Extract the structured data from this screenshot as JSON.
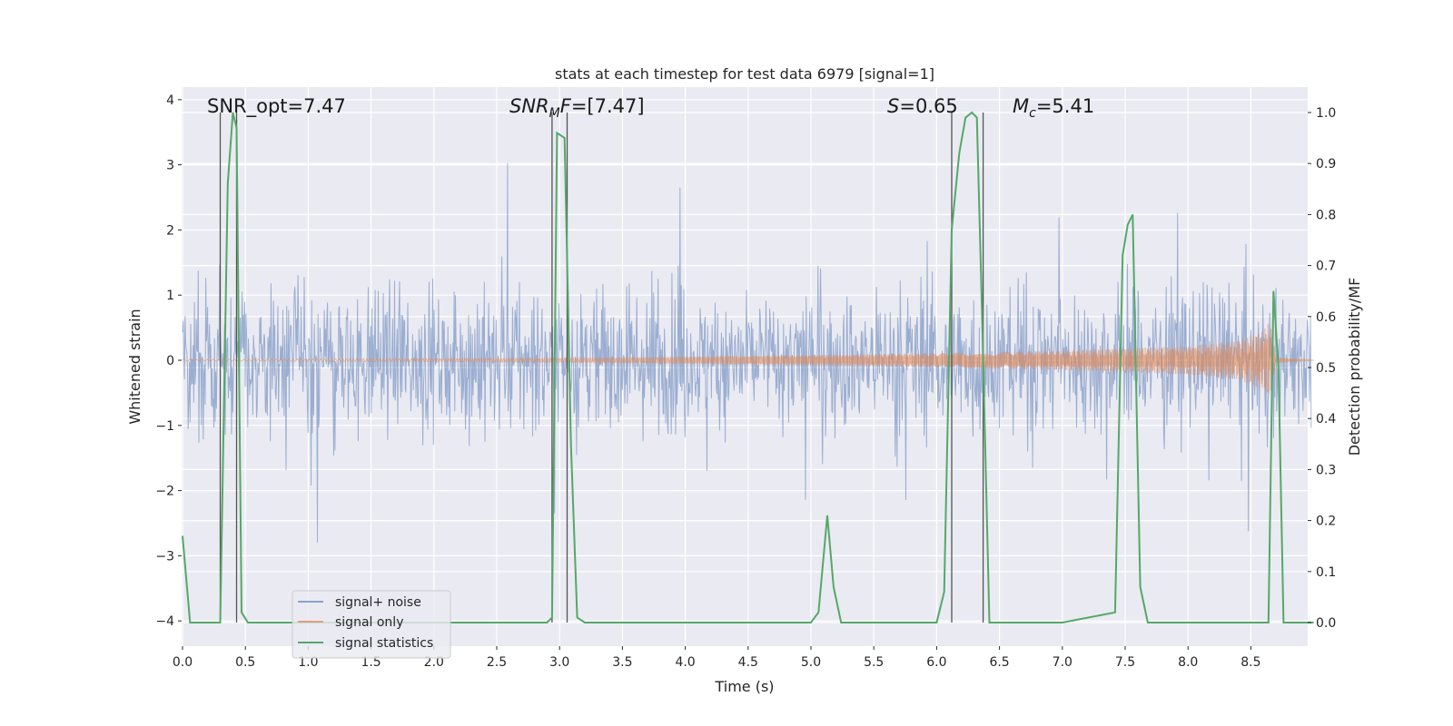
{
  "chart_data": {
    "type": "line",
    "title": "stats at each timestep for test data 6979 [signal=1]",
    "xlabel": "Time (s)",
    "ylabel": "Whitened strain",
    "y2label": "Detection probability/MF",
    "xlim": [
      0,
      9.0
    ],
    "ylim": [
      -4.4,
      4.2
    ],
    "y2lim": [
      -0.05,
      1.04
    ],
    "xticks": [
      "0.0",
      "0.5",
      "1.0",
      "1.5",
      "2.0",
      "2.5",
      "3.0",
      "3.5",
      "4.0",
      "4.5",
      "5.0",
      "5.5",
      "6.0",
      "6.5",
      "7.0",
      "7.5",
      "8.0",
      "8.5"
    ],
    "xtick_values": [
      0,
      0.5,
      1.0,
      1.5,
      2.0,
      2.5,
      3.0,
      3.5,
      4.0,
      4.5,
      5.0,
      5.5,
      6.0,
      6.5,
      7.0,
      7.5,
      8.0,
      8.5
    ],
    "yticks": [
      "−4",
      "−3",
      "−2",
      "−1",
      "0",
      "1",
      "2",
      "3",
      "4"
    ],
    "ytick_values": [
      -4,
      -3,
      -2,
      -1,
      0,
      1,
      2,
      3,
      4
    ],
    "y2ticks": [
      "0.0",
      "0.1",
      "0.2",
      "0.3",
      "0.4",
      "0.5",
      "0.6",
      "0.7",
      "0.8",
      "0.9",
      "1.0"
    ],
    "y2tick_values": [
      0,
      0.1,
      0.2,
      0.3,
      0.4,
      0.5,
      0.6,
      0.7,
      0.8,
      0.9,
      1.0
    ],
    "grid": true,
    "legend_position": "lower-left",
    "series": [
      {
        "name": "signal+ noise",
        "color": "#4c72b0",
        "axis": "left",
        "noise_amplitude": 2.2
      },
      {
        "name": "signal only",
        "color": "#dd8452",
        "axis": "left",
        "envelope_t": [
          0.0,
          3.0,
          5.0,
          6.0,
          7.0,
          8.0,
          8.4,
          8.6,
          8.65,
          8.7,
          9.0
        ],
        "envelope_amp": [
          0.01,
          0.03,
          0.08,
          0.11,
          0.15,
          0.22,
          0.3,
          0.45,
          0.6,
          0.05,
          0.0
        ]
      },
      {
        "name": "signal statistics",
        "color": "#55a868",
        "axis": "right",
        "x": [
          0.0,
          0.06,
          0.12,
          0.2,
          0.3,
          0.36,
          0.4,
          0.43,
          0.47,
          0.52,
          0.56,
          0.6,
          1.0,
          2.0,
          2.9,
          2.94,
          2.98,
          3.04,
          3.09,
          3.14,
          3.2,
          3.26,
          4.0,
          5.0,
          5.06,
          5.13,
          5.18,
          5.24,
          5.3,
          5.6,
          6.0,
          6.06,
          6.12,
          6.18,
          6.23,
          6.28,
          6.32,
          6.36,
          6.42,
          6.48,
          6.54,
          6.58,
          7.0,
          7.42,
          7.48,
          7.52,
          7.56,
          7.62,
          7.68,
          7.74,
          8.0,
          8.64,
          8.68,
          8.72,
          8.76,
          8.8,
          8.86,
          9.0
        ],
        "y": [
          0.17,
          0.0,
          0.0,
          0.0,
          0.0,
          0.86,
          1.0,
          0.97,
          0.02,
          0.0,
          0.0,
          0.0,
          0.0,
          0.0,
          0.0,
          0.01,
          0.96,
          0.95,
          0.35,
          0.01,
          0.0,
          0.0,
          0.0,
          0.0,
          0.02,
          0.21,
          0.07,
          0.0,
          0.0,
          0.0,
          0.0,
          0.06,
          0.77,
          0.92,
          0.99,
          1.0,
          0.99,
          0.62,
          0.0,
          0.0,
          0.0,
          0.0,
          0.0,
          0.02,
          0.72,
          0.78,
          0.8,
          0.07,
          0.0,
          0.0,
          0.0,
          0.0,
          0.65,
          0.5,
          0.0,
          0.0,
          0.0,
          0.0
        ]
      }
    ],
    "vlines": [
      0.3,
      0.43,
      2.94,
      3.06,
      6.12,
      6.37
    ],
    "annotations": [
      {
        "id": "snr_opt",
        "text": "SNR_opt=7.47"
      },
      {
        "id": "snr_mf_italic",
        "text": "SNR",
        "sub": "M",
        "italic_tail": "F",
        "rest": "=[7.47]"
      },
      {
        "id": "s",
        "italic": "S",
        "rest": "=0.65"
      },
      {
        "id": "mc",
        "italic": "M",
        "sub": "c",
        "rest": "=5.41"
      }
    ]
  }
}
